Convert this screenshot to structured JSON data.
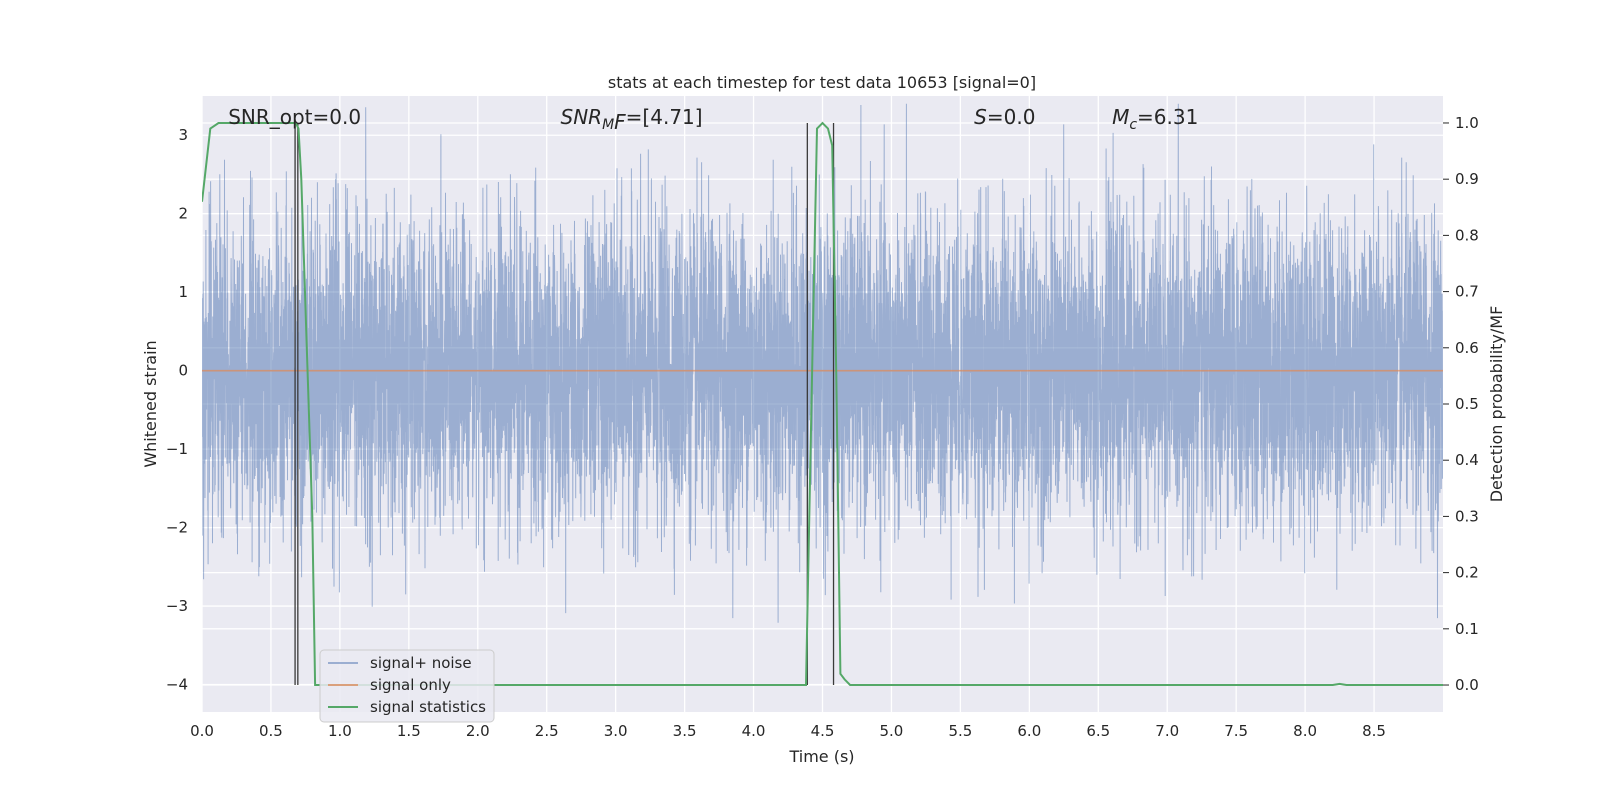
{
  "chart_data": {
    "type": "line",
    "title": "stats at each timestep for test data 10653 [signal=0]",
    "xlabel": "Time (s)",
    "ylabel": "Whitened strain",
    "y2label": "Detection probability/MF",
    "xlim": [
      0.0,
      9.0
    ],
    "ylim": [
      -4.35,
      3.5
    ],
    "y2lim": [
      -0.048,
      1.048
    ],
    "xticks": [
      "0.0",
      "0.5",
      "1.0",
      "1.5",
      "2.0",
      "2.5",
      "3.0",
      "3.5",
      "4.0",
      "4.5",
      "5.0",
      "5.5",
      "6.0",
      "6.5",
      "7.0",
      "7.5",
      "8.0",
      "8.5"
    ],
    "yticks": [
      "−4",
      "−3",
      "−2",
      "−1",
      "0",
      "1",
      "2",
      "3"
    ],
    "y2ticks": [
      "0.0",
      "0.1",
      "0.2",
      "0.3",
      "0.4",
      "0.5",
      "0.6",
      "0.7",
      "0.8",
      "0.9",
      "1.0"
    ],
    "grid": true,
    "legend_position": "lower-left",
    "annotations": [
      {
        "prefix": "SNR_opt",
        "sub": "",
        "suffix": "=0.0",
        "x": 0.19,
        "italic": false
      },
      {
        "prefix": "SNR",
        "sub": "M",
        "suffix": "F=[4.71]",
        "x": 2.6,
        "italic": true
      },
      {
        "prefix": "S",
        "sub": "",
        "suffix": "=0.0",
        "x": 5.6,
        "italic": true
      },
      {
        "prefix": "M",
        "sub": "c",
        "suffix": "=6.31",
        "x": 6.6,
        "italic": true
      }
    ],
    "series": [
      {
        "name": "signal+ noise",
        "color": "#4c72b0",
        "kind": "noise",
        "sample_rate": 1024,
        "sigma": 0.95
      },
      {
        "name": "signal only",
        "color": "#dd8452",
        "kind": "constant",
        "value": 0.0
      },
      {
        "name": "signal statistics",
        "color": "#55a868",
        "axis": "right",
        "x": [
          0.0,
          0.06,
          0.12,
          0.25,
          0.5,
          0.6,
          0.68,
          0.7,
          0.72,
          0.8,
          0.82,
          1.0,
          2.0,
          3.0,
          4.0,
          4.3,
          4.38,
          4.43,
          4.46,
          4.5,
          4.54,
          4.57,
          4.6,
          4.63,
          4.66,
          4.7,
          4.8,
          5.0,
          6.0,
          7.0,
          8.0,
          8.2,
          8.25,
          8.3,
          8.5,
          9.0
        ],
        "values": [
          0.86,
          0.99,
          1.0,
          1.0,
          1.0,
          1.0,
          1.0,
          0.99,
          0.9,
          0.3,
          0.0,
          0.0,
          0.0,
          0.0,
          0.0,
          0.0,
          0.0,
          0.62,
          0.99,
          1.0,
          0.99,
          0.96,
          0.55,
          0.02,
          0.01,
          0.0,
          0.0,
          0.0,
          0.0,
          0.0,
          0.0,
          0.0,
          0.002,
          0.0,
          0.0,
          0.0
        ]
      }
    ],
    "vlines": [
      {
        "x": 0.675,
        "color": "#3a3a3a"
      },
      {
        "x": 0.695,
        "color": "#3a3a3a"
      },
      {
        "x": 4.39,
        "color": "#3a3a3a"
      },
      {
        "x": 4.58,
        "color": "#3a3a3a"
      }
    ]
  }
}
